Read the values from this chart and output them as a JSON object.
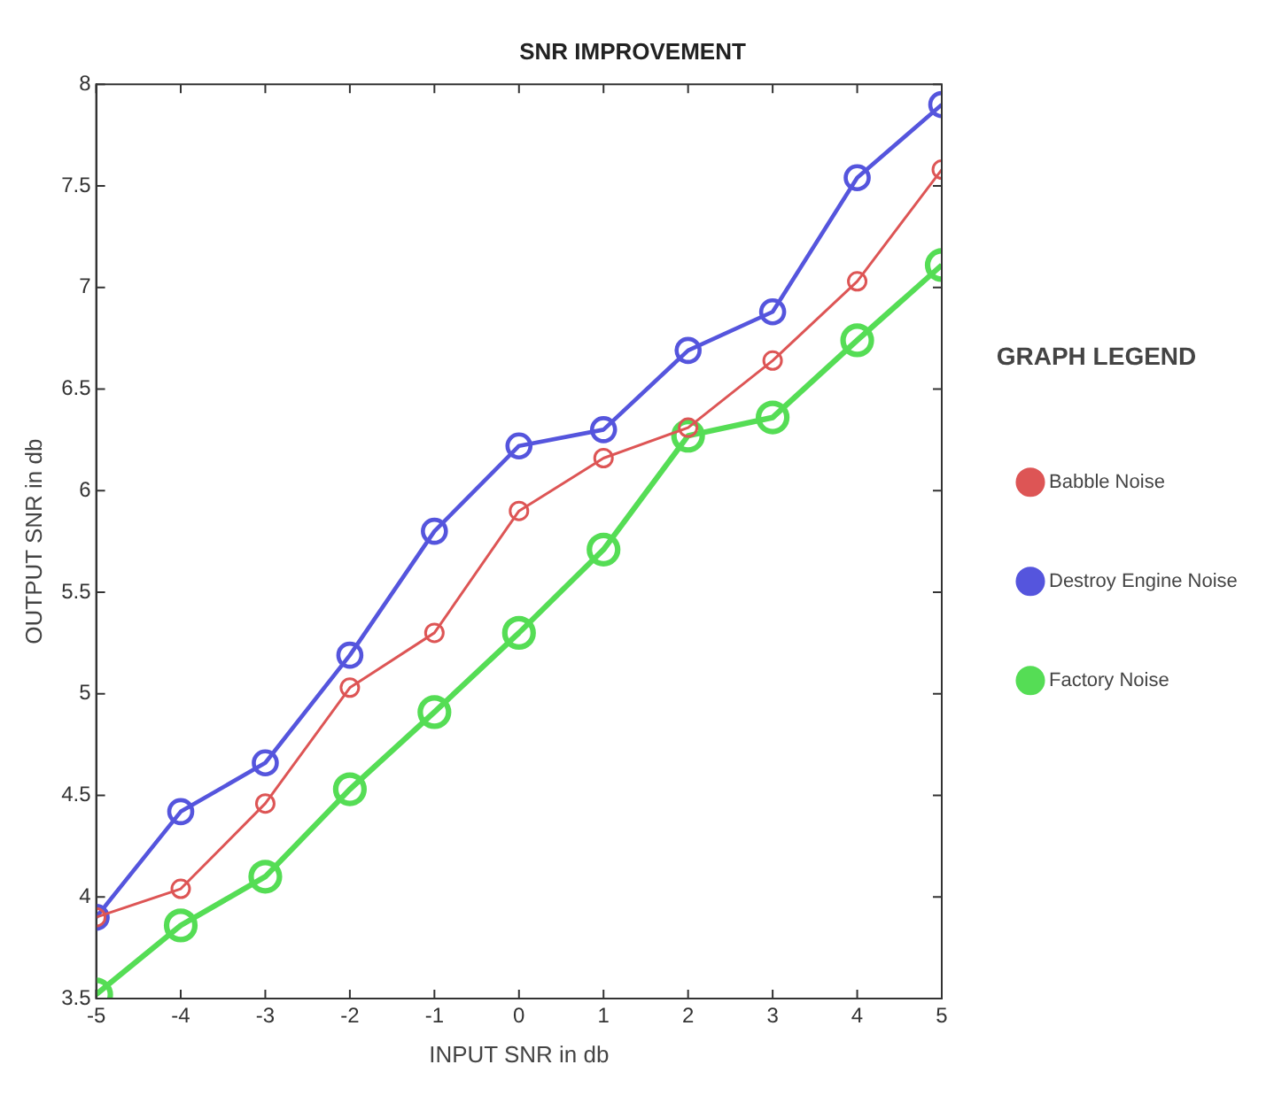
{
  "chart_data": {
    "type": "line",
    "title": "SNR IMPROVEMENT",
    "xlabel": "INPUT SNR in db",
    "ylabel": "OUTPUT SNR in db",
    "legend_title": "GRAPH LEGEND",
    "x": [
      -5,
      -4,
      -3,
      -2,
      -1,
      0,
      1,
      2,
      3,
      4,
      5
    ],
    "series": [
      {
        "name": "Babble Noise",
        "color": "#dd5555",
        "values": [
          3.9,
          4.04,
          4.46,
          5.03,
          5.3,
          5.9,
          6.16,
          6.31,
          6.64,
          7.03,
          7.58
        ]
      },
      {
        "name": "Destroy Engine Noise",
        "color": "#5555dd",
        "values": [
          3.9,
          4.42,
          4.66,
          5.19,
          5.8,
          6.22,
          6.3,
          6.69,
          6.88,
          7.54,
          7.9
        ]
      },
      {
        "name": "Factory Noise",
        "color": "#55dd55",
        "values": [
          3.52,
          3.86,
          4.1,
          4.53,
          4.91,
          5.3,
          5.71,
          6.27,
          6.36,
          6.74,
          7.11
        ]
      }
    ],
    "xlim": [
      -5,
      5
    ],
    "xticks": [
      -5,
      -4,
      -3,
      -2,
      -1,
      0,
      1,
      2,
      3,
      4,
      5
    ],
    "ylim": [
      3.5,
      8
    ],
    "yticks": [
      3.5,
      4,
      4.5,
      5,
      5.5,
      6,
      6.5,
      7,
      7.5,
      8
    ],
    "grid": false,
    "legend": "right",
    "marker": "circle",
    "line_style": "solid"
  }
}
